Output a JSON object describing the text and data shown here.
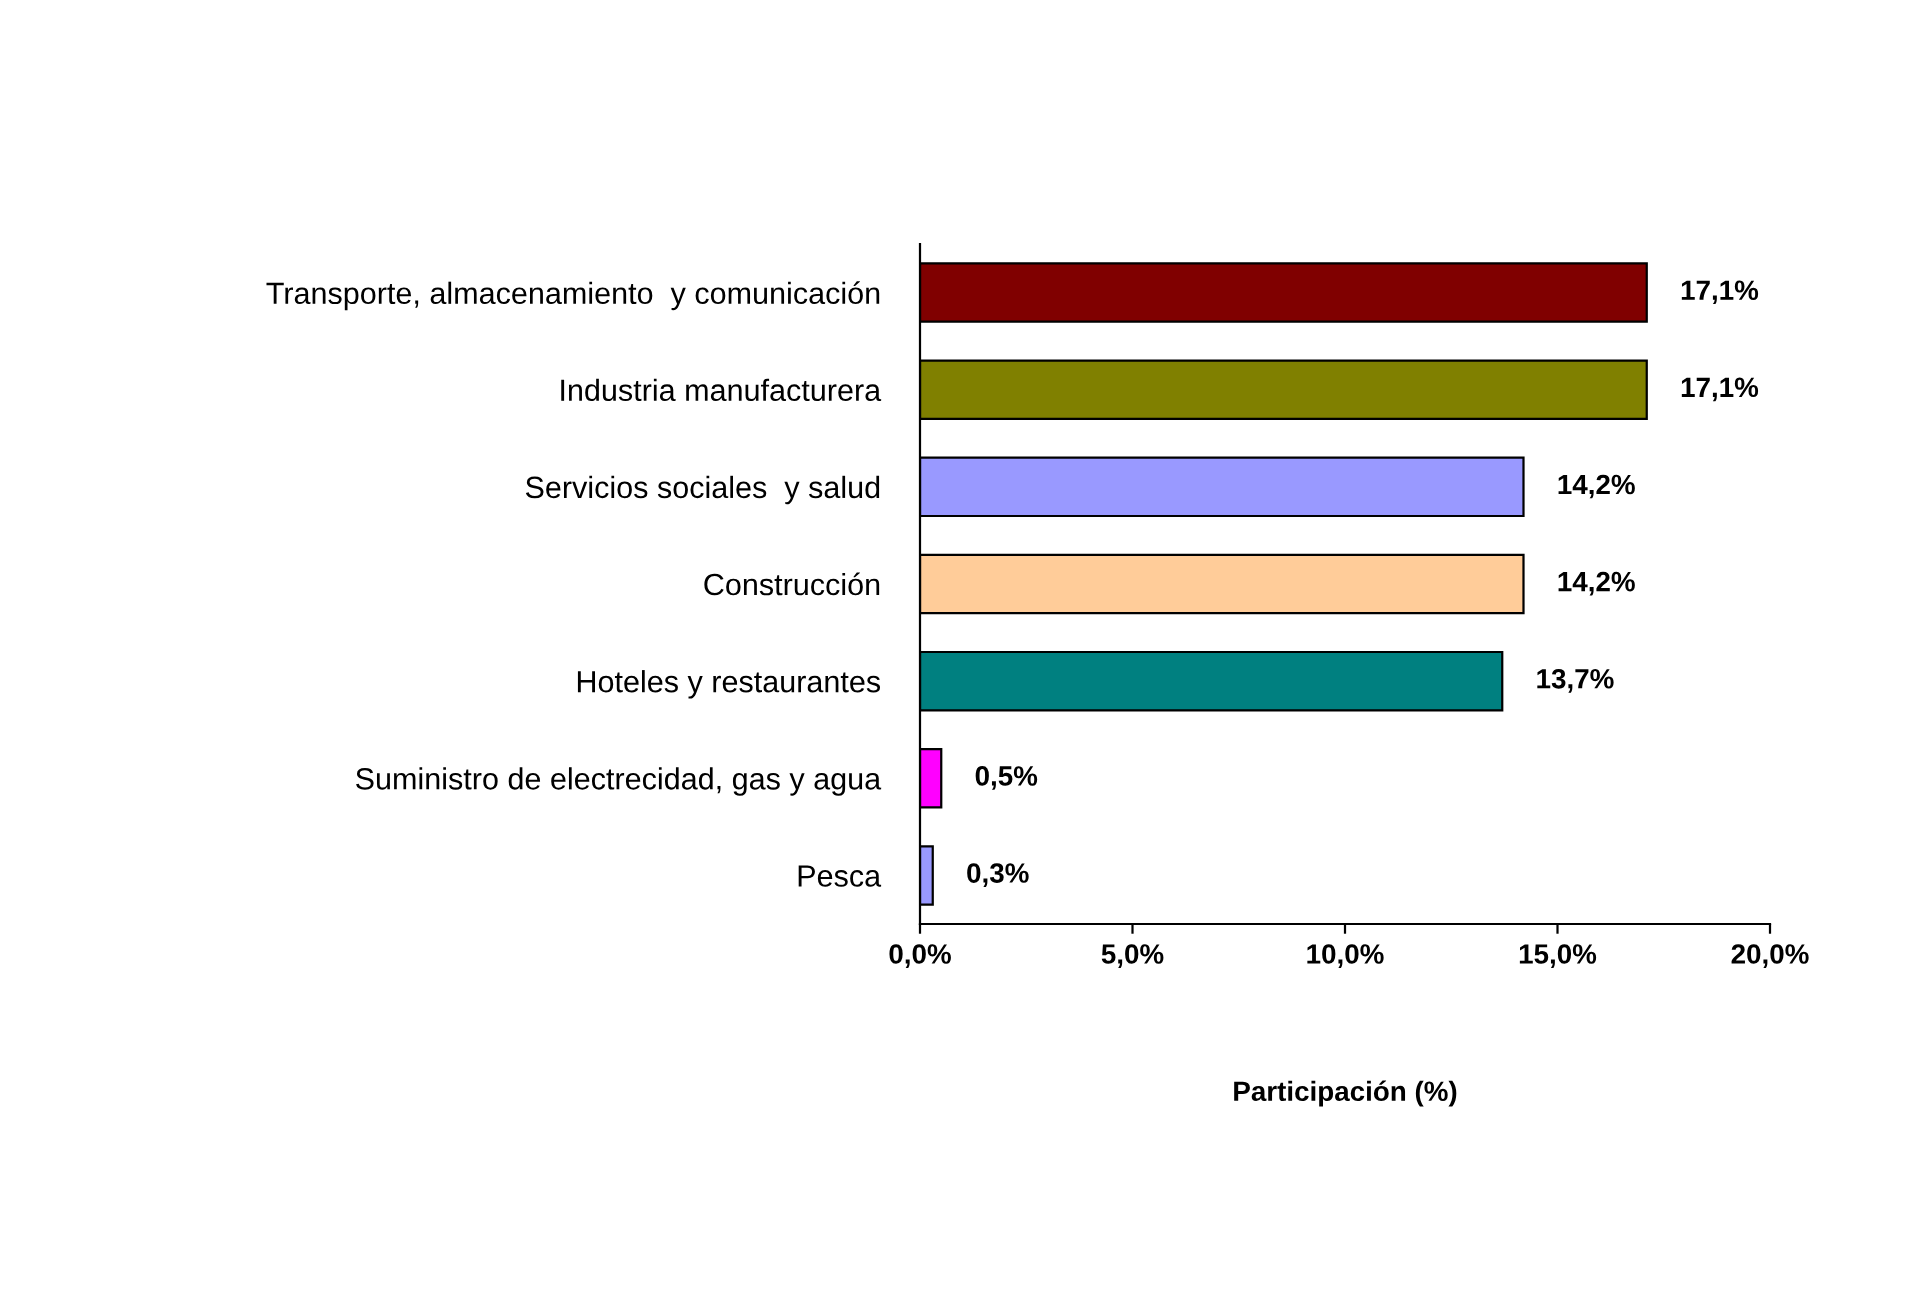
{
  "chart_data": {
    "type": "bar",
    "orientation": "horizontal",
    "xlabel": "Participación (%)",
    "categories": [
      "Transporte, almacenamiento  y comunicación",
      "Industria manufacturera",
      "Servicios sociales  y salud",
      "Construcción",
      "Hoteles y restaurantes",
      "Suministro de electrecidad, gas y agua",
      "Pesca"
    ],
    "values": [
      17.1,
      17.1,
      14.2,
      14.2,
      13.7,
      0.5,
      0.3
    ],
    "value_labels": [
      "17,1%",
      "17,1%",
      "14,2%",
      "14,2%",
      "13,7%",
      "0,5%",
      "0,3%"
    ],
    "colors": [
      "#800000",
      "#808000",
      "#9999ff",
      "#ffcc99",
      "#008080",
      "#ff00ff",
      "#9999ff"
    ],
    "xlim": [
      0,
      20
    ],
    "xticks": [
      {
        "value": 0,
        "label": "0,0%"
      },
      {
        "value": 5,
        "label": "5,0%"
      },
      {
        "value": 10,
        "label": "10,0%"
      },
      {
        "value": 15,
        "label": "15,0%"
      },
      {
        "value": 20,
        "label": "20,0%"
      }
    ],
    "grid": false,
    "legend": false
  }
}
